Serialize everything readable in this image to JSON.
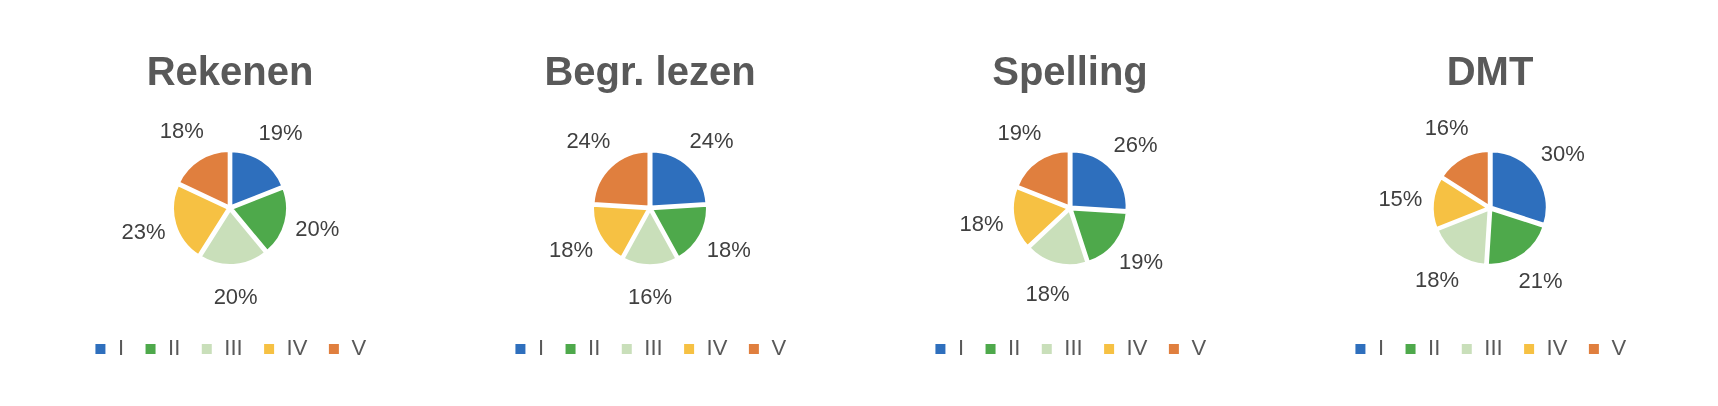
{
  "chart_data": [
    {
      "type": "pie",
      "title": "Rekenen",
      "categories": [
        "I",
        "II",
        "III",
        "IV",
        "V"
      ],
      "values": [
        19,
        20,
        20,
        23,
        18
      ],
      "value_labels": [
        "19%",
        "20%",
        "20%",
        "23%",
        "18%"
      ],
      "colors": [
        "#2e6fbd",
        "#4ea94b",
        "#c9dfba",
        "#f6c143",
        "#e07f3e"
      ],
      "legend": "bottom"
    },
    {
      "type": "pie",
      "title": "Begr. lezen",
      "categories": [
        "I",
        "II",
        "III",
        "IV",
        "V"
      ],
      "values": [
        24,
        18,
        16,
        18,
        24
      ],
      "value_labels": [
        "24%",
        "18%",
        "16%",
        "18%",
        "24%"
      ],
      "colors": [
        "#2e6fbd",
        "#4ea94b",
        "#c9dfba",
        "#f6c143",
        "#e07f3e"
      ],
      "legend": "bottom"
    },
    {
      "type": "pie",
      "title": "Spelling",
      "categories": [
        "I",
        "II",
        "III",
        "IV",
        "V"
      ],
      "values": [
        26,
        19,
        18,
        18,
        19
      ],
      "value_labels": [
        "26%",
        "19%",
        "18%",
        "18%",
        "19%"
      ],
      "colors": [
        "#2e6fbd",
        "#4ea94b",
        "#c9dfba",
        "#f6c143",
        "#e07f3e"
      ],
      "legend": "bottom"
    },
    {
      "type": "pie",
      "title": "DMT",
      "categories": [
        "I",
        "II",
        "III",
        "IV",
        "V"
      ],
      "values": [
        30,
        21,
        18,
        15,
        16
      ],
      "value_labels": [
        "30%",
        "21%",
        "18%",
        "15%",
        "16%"
      ],
      "colors": [
        "#2e6fbd",
        "#4ea94b",
        "#c9dfba",
        "#f6c143",
        "#e07f3e"
      ],
      "legend": "bottom"
    }
  ]
}
